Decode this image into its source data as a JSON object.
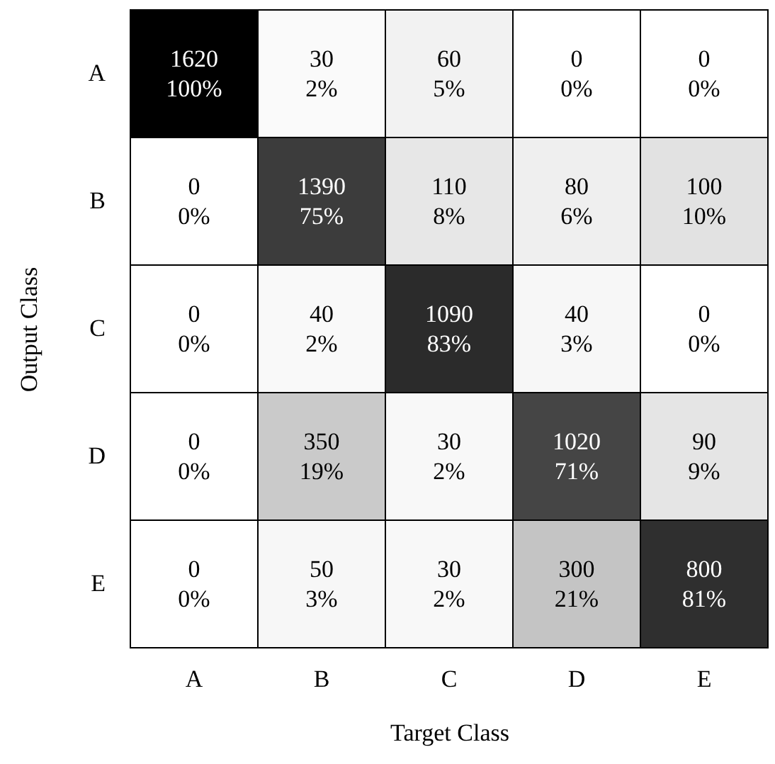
{
  "chart_data": {
    "type": "heatmap",
    "xlabel": "Target Class",
    "ylabel": "Output Class",
    "categories": [
      "A",
      "B",
      "C",
      "D",
      "E"
    ],
    "y_categories": [
      "A",
      "B",
      "C",
      "D",
      "E"
    ],
    "cells": [
      [
        1620,
        30,
        60,
        0,
        0
      ],
      [
        0,
        1390,
        110,
        80,
        100
      ],
      [
        0,
        40,
        1090,
        40,
        0
      ],
      [
        0,
        350,
        30,
        1020,
        90
      ],
      [
        0,
        50,
        30,
        300,
        800
      ]
    ],
    "data_labels": true,
    "annotations": [
      "100%",
      "2%",
      "5%",
      "0%",
      "0%",
      "0%",
      "75%",
      "8%",
      "6%",
      "10%",
      "0%",
      "2%",
      "83%",
      "3%",
      "0%",
      "0%",
      "19%",
      "2%",
      "71%",
      "9%",
      "0%",
      "3%",
      "2%",
      "21%",
      "81%"
    ]
  }
}
